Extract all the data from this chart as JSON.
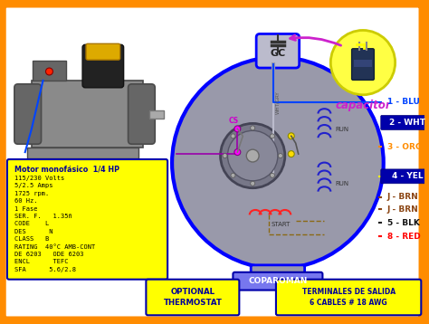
{
  "bg_color": "#FF8C00",
  "inner_bg": "#FFFFFF",
  "spec_box_color": "#FFFF00",
  "spec_box_border": "#0000AA",
  "spec_title": "Motor monofásico  1/4 HP",
  "spec_lines": [
    "115/230 Volts",
    "5/2.5 Amps",
    "1725 rpm.",
    "60 Hz.",
    "1 Fase",
    "SER. F.   1.35ñ",
    "CODE    L",
    "DES      N",
    "CLASS   B",
    "RATING  40°C AMB-CONT",
    "DE 6203   ODE 6203",
    "ENCL      TEFC",
    "SFA      5.6/2.8"
  ],
  "terminal_labels": [
    "1 - BLU",
    "2 - WHT",
    "3 - ORG",
    "4 - YEL",
    "J - BRN",
    "J - BRN",
    "5 - BLK",
    "8 - RED"
  ],
  "terminal_text_colors": [
    "#0044FF",
    "#FFFFFF",
    "#FF8C00",
    "#FFFF00",
    "#8B4513",
    "#8B4513",
    "#111111",
    "#FF0000"
  ],
  "terminal_bg": [
    false,
    true,
    false,
    true,
    false,
    false,
    false,
    false
  ],
  "coparoman_label": "COPAROMAN",
  "output_label": "TERMINALES DE SALIDA\n6 CABLES # 18 AWG",
  "optional_label": "OPTIONAL\nTHERMOSTAT",
  "capacitor_label": "capacitor",
  "motor_body_color": "#8a8a8a",
  "motor_dark": "#666666",
  "motor_darker": "#4a4a4a",
  "circle_fill": "#9999aa",
  "circle_edge": "#0000FF"
}
